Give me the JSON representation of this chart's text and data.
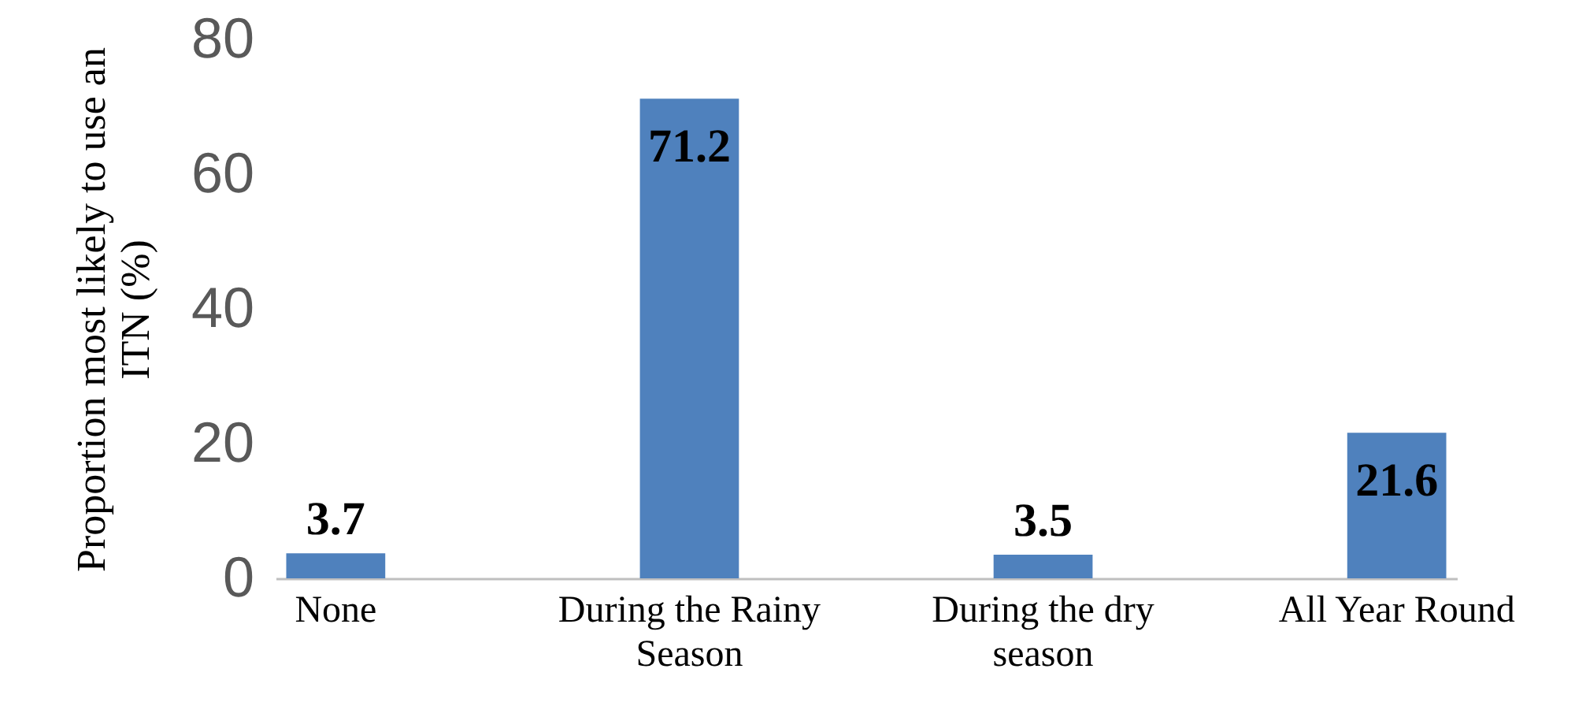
{
  "chart_data": {
    "type": "bar",
    "ylabel": "Proportion most likely to use an ITN (%)",
    "categories": [
      "None",
      "During the Rainy Season",
      "During the dry season",
      "All Year Round"
    ],
    "values": [
      3.7,
      71.2,
      3.5,
      21.6
    ],
    "color": "#4f81bd",
    "ylim": [
      0,
      80
    ],
    "yticks": [
      0,
      20,
      40,
      60,
      80
    ],
    "data_labels": true,
    "grid": false
  }
}
